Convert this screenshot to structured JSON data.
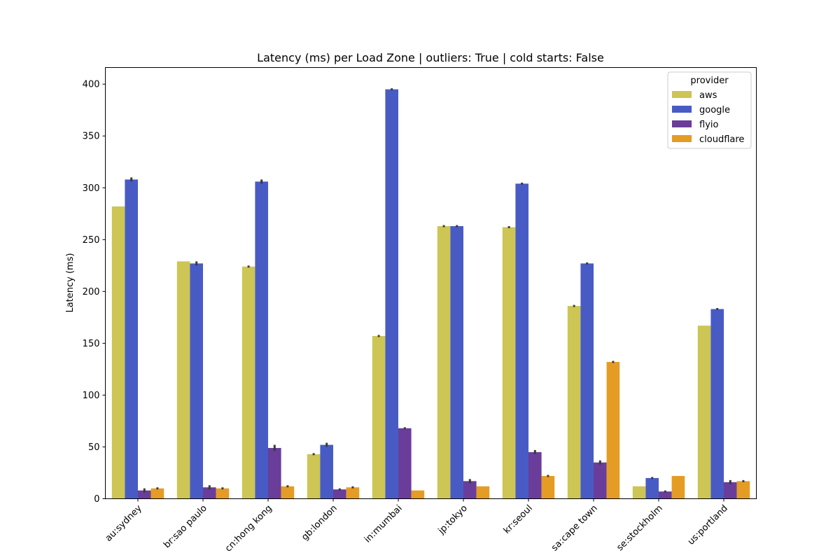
{
  "chart_data": {
    "type": "bar",
    "title": "Latency (ms) per Load Zone | outliers: True | cold starts: False",
    "xlabel": "",
    "ylabel": "Latency (ms)",
    "ylim": [
      0,
      416
    ],
    "yticks": [
      0,
      50,
      100,
      150,
      200,
      250,
      300,
      350,
      400
    ],
    "categories": [
      "au:sydney",
      "br:sao paulo",
      "cn:hong kong",
      "gb:london",
      "in:mumbai",
      "jp:tokyo",
      "kr:seoul",
      "sa:cape town",
      "se:stockholm",
      "us:portland"
    ],
    "legend": {
      "title": "provider",
      "position": "top-right"
    },
    "grid": false,
    "series": [
      {
        "name": "aws",
        "color": "#cdc554",
        "values": [
          282,
          229,
          224,
          43,
          157,
          263,
          262,
          186,
          12,
          167
        ],
        "errors": [
          0,
          0,
          1,
          1,
          1,
          1,
          1,
          1,
          0,
          0
        ]
      },
      {
        "name": "google",
        "color": "#485bc5",
        "values": [
          308,
          227,
          306,
          52,
          395,
          263,
          304,
          227,
          20,
          183
        ],
        "errors": [
          2,
          2,
          2,
          2,
          1,
          1,
          1,
          1,
          1,
          1
        ]
      },
      {
        "name": "flyio",
        "color": "#6a3d9a",
        "values": [
          8,
          11,
          49,
          9,
          68,
          17,
          45,
          35,
          7,
          16
        ],
        "errors": [
          2,
          2,
          3,
          1,
          1,
          2,
          2,
          2,
          1,
          2
        ]
      },
      {
        "name": "cloudflare",
        "color": "#e59c24",
        "values": [
          10,
          10,
          12,
          11,
          8,
          12,
          22,
          132,
          22,
          17
        ],
        "errors": [
          1,
          1,
          1,
          1,
          0,
          0,
          1,
          1,
          0,
          1
        ]
      }
    ]
  }
}
